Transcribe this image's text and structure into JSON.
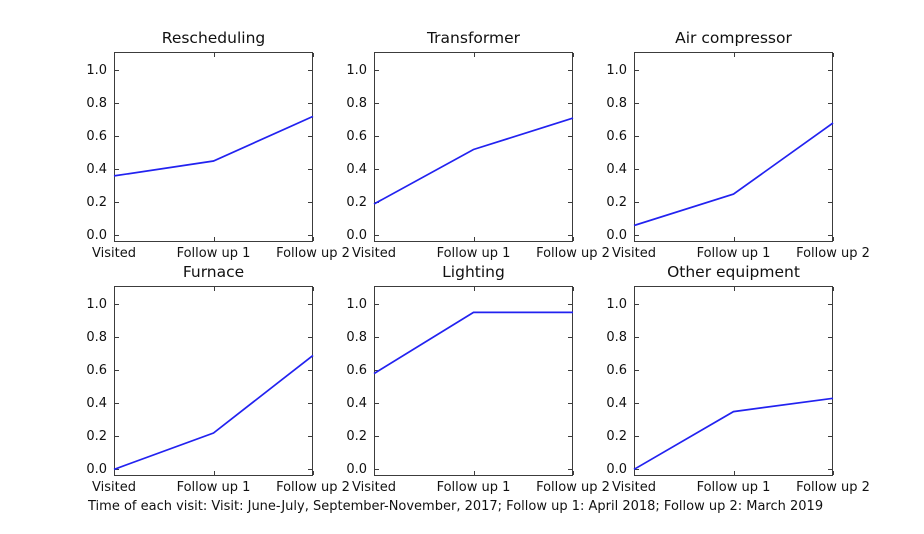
{
  "caption": "Time of each visit: Visit: June-July, September-November, 2017; Follow up 1: April 2018; Follow up 2: March 2019",
  "chart_data": {
    "type": "line",
    "layout": "2 rows x 3 cols",
    "categories": [
      "Visited",
      "Follow up 1",
      "Follow up 2"
    ],
    "ytick_labels": [
      "0.0",
      "0.2",
      "0.4",
      "0.6",
      "0.8",
      "1.0"
    ],
    "ylim": [
      -0.04,
      1.11
    ],
    "grid": false,
    "legend": "none",
    "line_color": "#2222f0",
    "spine_color": "#3c3c3c",
    "charts": [
      {
        "title": "Rescheduling",
        "values": [
          0.36,
          0.45,
          0.72
        ]
      },
      {
        "title": "Transformer",
        "values": [
          0.19,
          0.52,
          0.71
        ]
      },
      {
        "title": "Air compressor",
        "values": [
          0.06,
          0.25,
          0.68
        ]
      },
      {
        "title": "Furnace",
        "values": [
          0.0,
          0.22,
          0.69
        ]
      },
      {
        "title": "Lighting",
        "values": [
          0.58,
          0.95,
          0.95
        ]
      },
      {
        "title": "Other equipment",
        "values": [
          0.0,
          0.35,
          0.43
        ]
      }
    ]
  }
}
